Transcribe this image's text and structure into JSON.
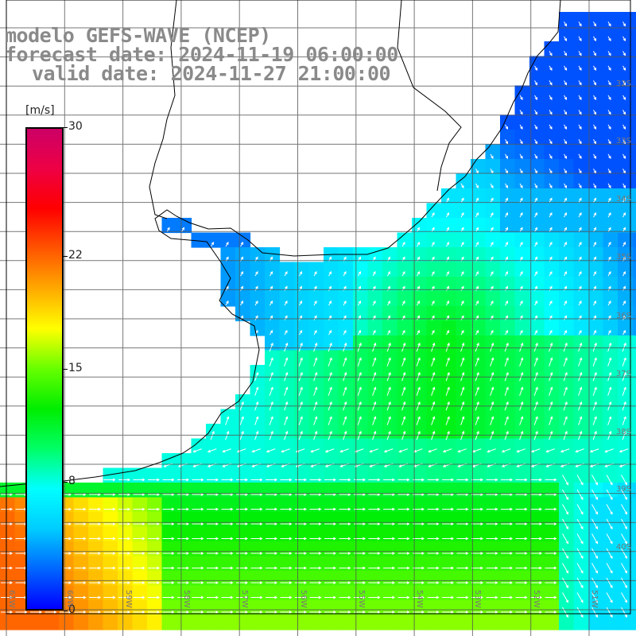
{
  "title": {
    "model": "modelo GEFS-WAVE (NCEP)",
    "forecast": "forecast date: 2024-11-19 06:00:00",
    "valid": "valid date: 2024-11-27 21:00:00"
  },
  "colorbar": {
    "unit": "[m/s]",
    "ticks": [
      {
        "label": "30",
        "value": 30
      },
      {
        "label": "22",
        "value": 22
      },
      {
        "label": "15",
        "value": 15
      },
      {
        "label": "8",
        "value": 8
      },
      {
        "label": "0",
        "value": 0
      }
    ],
    "colors": [
      "#0000ff",
      "#0066ff",
      "#00ccff",
      "#00ffff",
      "#00ff66",
      "#00ee00",
      "#66ff00",
      "#ffff00",
      "#ffaa00",
      "#ff5500",
      "#ff0000",
      "#ee0044",
      "#cc0066"
    ],
    "min": 0,
    "max": 30
  },
  "lat_labels": [
    "32S",
    "33S",
    "34S",
    "35S",
    "36S",
    "37S",
    "38S",
    "39S",
    "40S"
  ],
  "lon_labels": [
    "61W",
    "60W",
    "59W",
    "58W",
    "57W",
    "56W",
    "55W",
    "54W",
    "53W",
    "52W",
    "51W"
  ],
  "land_color": "#ffffff",
  "grid_color": "#555555"
}
